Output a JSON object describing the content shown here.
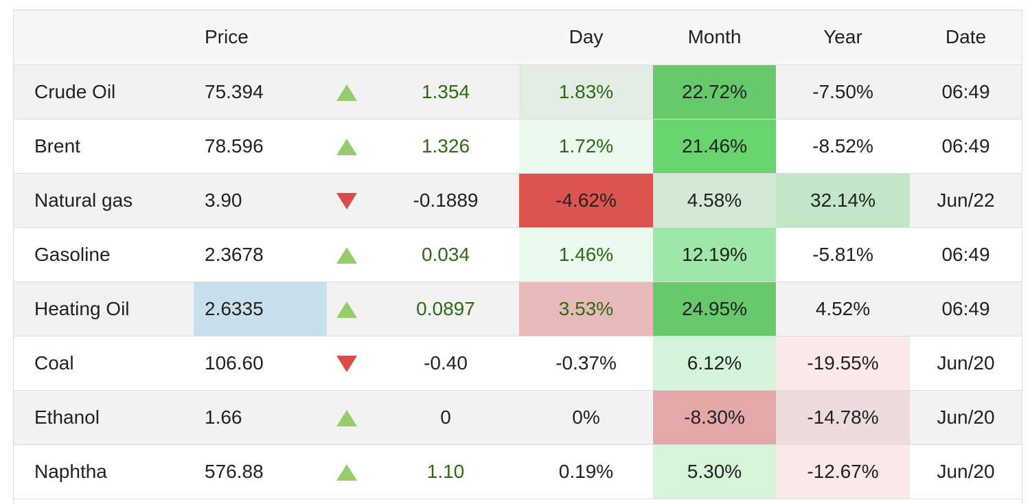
{
  "header": {
    "price": "Price",
    "day": "Day",
    "month": "Month",
    "year": "Year",
    "date": "Date"
  },
  "colors": {
    "up_arrow": "#97cc6c",
    "down_arrow": "#dd4b47",
    "positive_text": "#2d6a14",
    "price_highlight": "#c8dfec"
  },
  "rows": [
    {
      "name": "Crude Oil",
      "price": "75.394",
      "direction": "up",
      "change": "1.354",
      "day": "1.83%",
      "month": "22.72%",
      "year": "-7.50%",
      "date": "06:49",
      "price_bg": "",
      "day_bg": "#e2ece3",
      "month_bg": "#66c96c",
      "year_bg": ""
    },
    {
      "name": "Brent",
      "price": "78.596",
      "direction": "up",
      "change": "1.326",
      "day": "1.72%",
      "month": "21.46%",
      "year": "-8.52%",
      "date": "06:49",
      "price_bg": "",
      "day_bg": "#ebf9ee",
      "month_bg": "#67d46e",
      "year_bg": ""
    },
    {
      "name": "Natural gas",
      "price": "3.90",
      "direction": "down",
      "change": "-0.1889",
      "day": "-4.62%",
      "month": "4.58%",
      "year": "32.14%",
      "date": "Jun/22",
      "price_bg": "",
      "day_bg": "#dd544f",
      "month_bg": "#d4e8d6",
      "year_bg": "#c3e6c8"
    },
    {
      "name": "Gasoline",
      "price": "2.3678",
      "direction": "up",
      "change": "0.034",
      "day": "1.46%",
      "month": "12.19%",
      "year": "-5.81%",
      "date": "06:49",
      "price_bg": "",
      "day_bg": "#eafaee",
      "month_bg": "#9fe7a7",
      "year_bg": ""
    },
    {
      "name": "Heating Oil",
      "price": "2.6335",
      "direction": "up",
      "change": "0.0897",
      "day": "3.53%",
      "month": "24.95%",
      "year": "4.52%",
      "date": "06:49",
      "price_bg": "#c8dfec",
      "day_bg": "#e7b9b9",
      "month_bg": "#66c96c",
      "year_bg": ""
    },
    {
      "name": "Coal",
      "price": "106.60",
      "direction": "down",
      "change": "-0.40",
      "day": "-0.37%",
      "month": "6.12%",
      "year": "-19.55%",
      "date": "Jun/20",
      "price_bg": "",
      "day_bg": "",
      "month_bg": "#d3f4d8",
      "year_bg": "#fbe8e8"
    },
    {
      "name": "Ethanol",
      "price": "1.66",
      "direction": "up",
      "change": "0",
      "day": "0%",
      "month": "-8.30%",
      "year": "-14.78%",
      "date": "Jun/20",
      "price_bg": "",
      "day_bg": "",
      "month_bg": "#e5a8a8",
      "year_bg": "#ecdcdc"
    },
    {
      "name": "Naphtha",
      "price": "576.88",
      "direction": "up",
      "change": "1.10",
      "day": "0.19%",
      "month": "5.30%",
      "year": "-12.67%",
      "date": "Jun/20",
      "price_bg": "",
      "day_bg": "",
      "month_bg": "#d5f5d9",
      "year_bg": "#fbe8e8"
    }
  ]
}
